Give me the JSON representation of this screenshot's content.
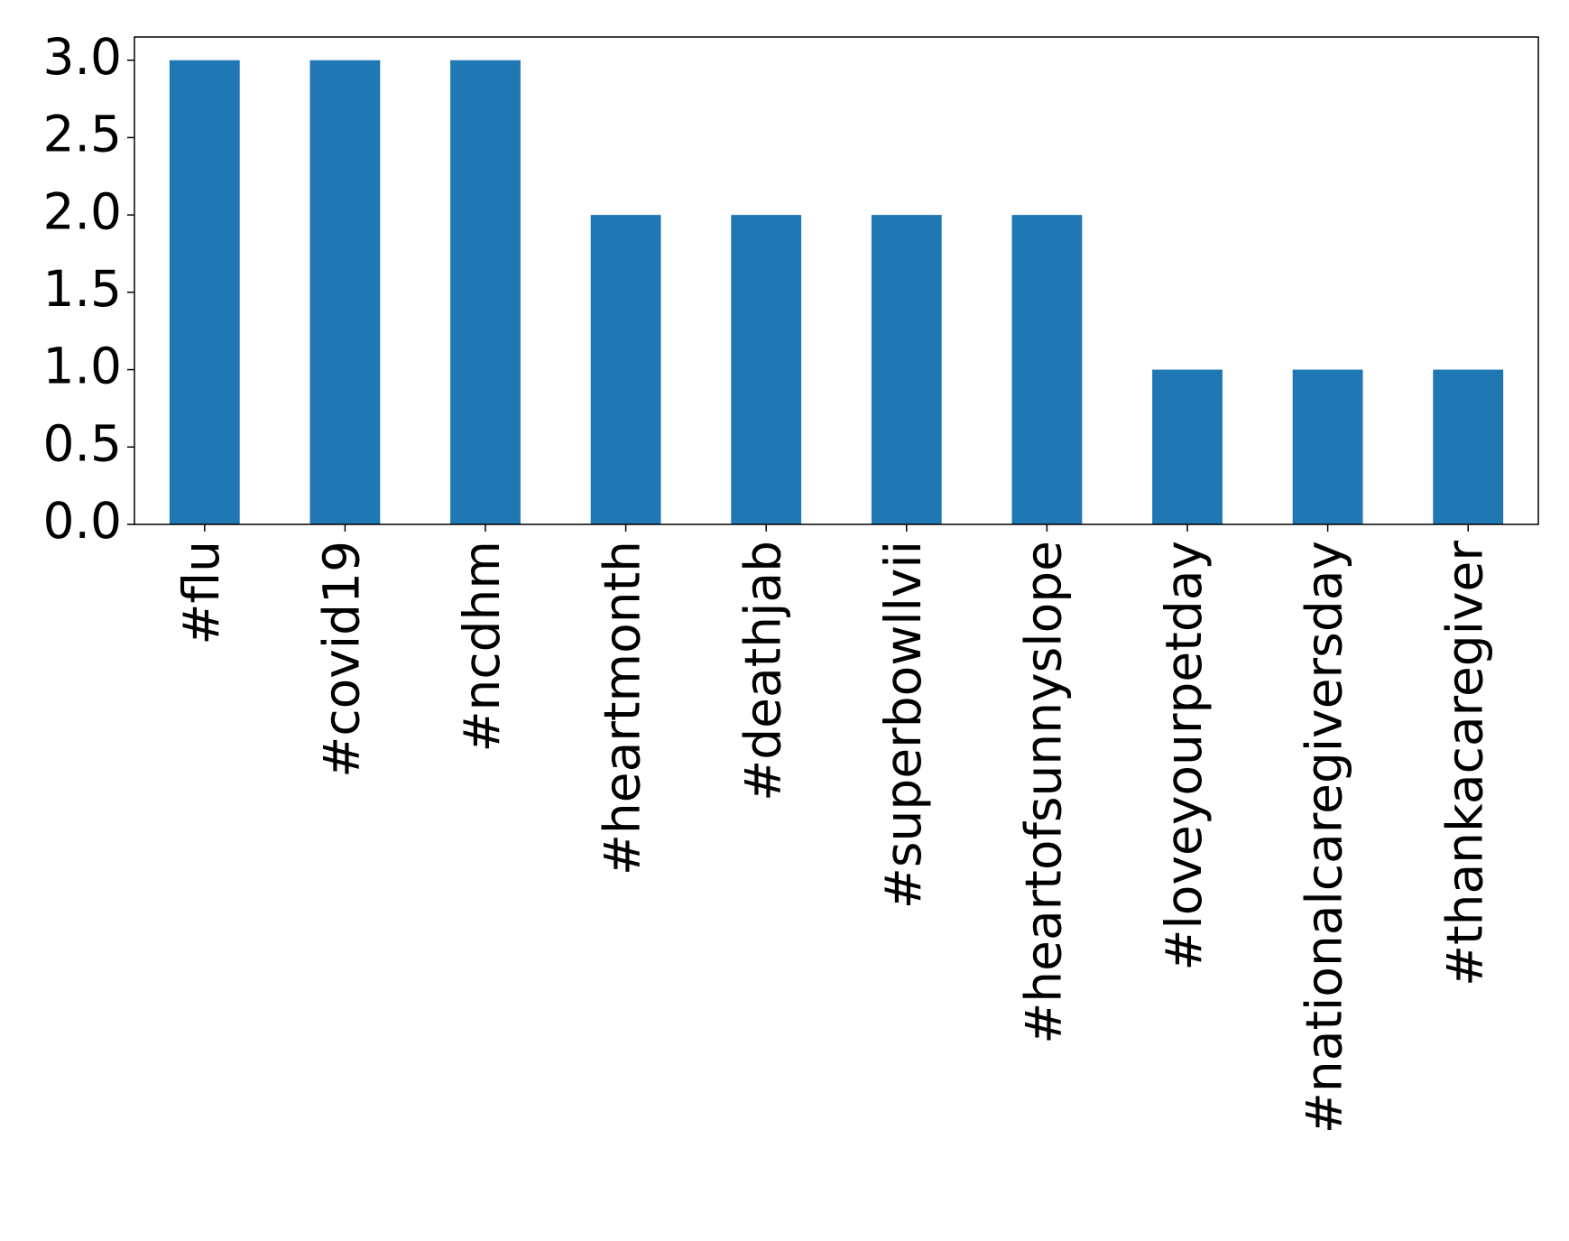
{
  "chart_data": {
    "type": "bar",
    "categories": [
      "#flu",
      "#covid19",
      "#ncdhm",
      "#heartmonth",
      "#deathjab",
      "#superbowllvii",
      "#heartofsunnyslope",
      "#loveyourpetday",
      "#nationalcaregiversday",
      "#thankacaregiver"
    ],
    "values": [
      3,
      3,
      3,
      2,
      2,
      2,
      2,
      1,
      1,
      1
    ],
    "color": "#1f77b4",
    "ylim": [
      0,
      3.15
    ],
    "yticks": [
      {
        "value": 0,
        "label": "0.0"
      },
      {
        "value": 0.5,
        "label": "0.5"
      },
      {
        "value": 1,
        "label": "1.0"
      },
      {
        "value": 1.5,
        "label": "1.5"
      },
      {
        "value": 2,
        "label": "2.0"
      },
      {
        "value": 2.5,
        "label": "2.5"
      },
      {
        "value": 3,
        "label": "3.0"
      }
    ],
    "grid": false
  }
}
